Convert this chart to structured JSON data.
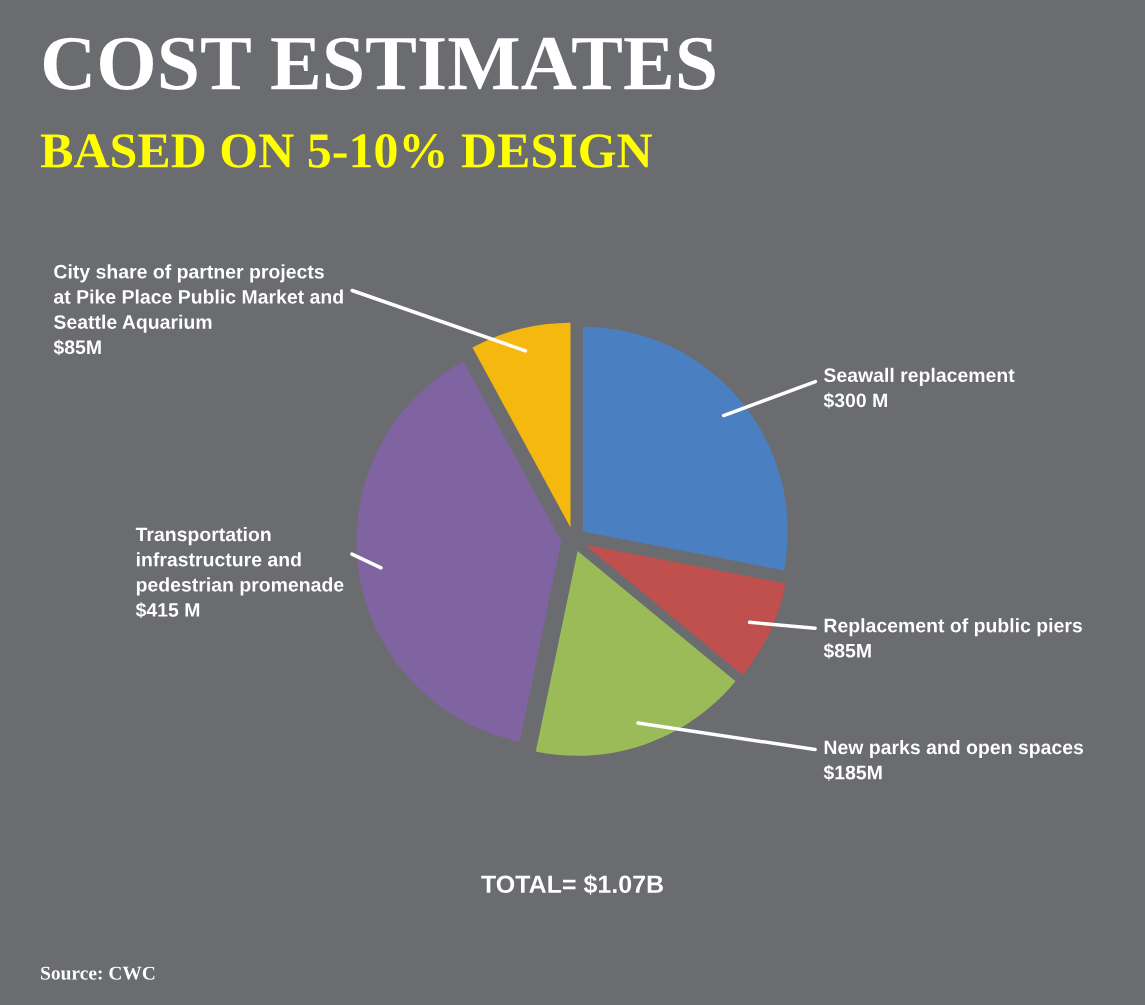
{
  "chart_data": {
    "type": "pie",
    "title": "COST ESTIMATES",
    "subtitle": "BASED ON 5-10% DESIGN",
    "categories": [
      "Seawall replacement",
      "Replacement of public piers",
      "New parks and open spaces",
      "Transportation\ninfrastructure and\npedestrian promenade",
      "City share of partner projects\nat Pike Place Public Market and\nSeattle Aquarium"
    ],
    "values": [
      300,
      85,
      185,
      415,
      85
    ],
    "value_labels": [
      "$300 M",
      "$85M",
      "$185M",
      "$415 M",
      "$85M"
    ],
    "colors": [
      "#4a7fc1",
      "#c0504d",
      "#9bbb59",
      "#8064a2",
      "#f5b80f"
    ],
    "annotations": [
      "TOTAL= $1.07B",
      "Source: CWC"
    ]
  }
}
